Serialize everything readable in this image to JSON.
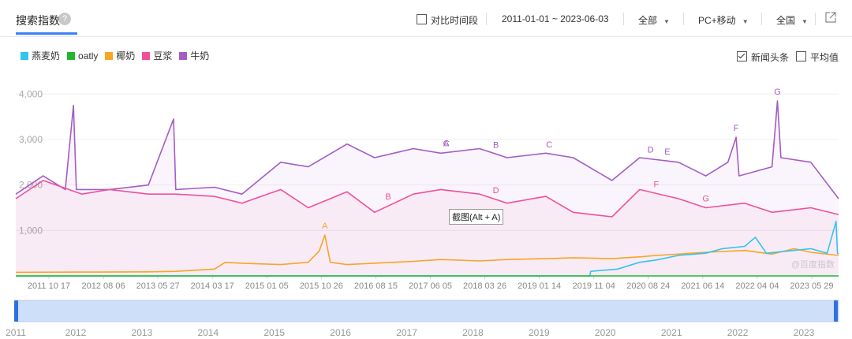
{
  "header": {
    "title": "搜索指数",
    "help_icon": "?",
    "compare_label": "对比时间段",
    "date_range": "2011-01-01 ~ 2023-06-03",
    "scope": "全部",
    "device": "PC+移动",
    "region": "全国",
    "share_icon": "external-link-icon"
  },
  "options": {
    "news_label": "新闻头条",
    "news_checked": true,
    "avg_label": "平均值",
    "avg_checked": false
  },
  "tooltip": "截图(Alt + A)",
  "watermark": "@百度指数",
  "navigator_years": [
    "2011",
    "2012",
    "2013",
    "2014",
    "2015",
    "2016",
    "2017",
    "2018",
    "2019",
    "2020",
    "2021",
    "2022",
    "2023"
  ],
  "chart_data": {
    "type": "line",
    "x_tick_labels": [
      "2011 10 17",
      "2012 08 06",
      "2013 05 27",
      "2014 03 17",
      "2015 01 05",
      "2015 10 26",
      "2016 08 15",
      "2017 06 05",
      "2018 03 26",
      "2019 01 14",
      "2019 11 04",
      "2020 08 24",
      "2021 06 14",
      "2022 04 04",
      "2023 05 29"
    ],
    "y_tick_labels": [
      "1,000",
      "2,000",
      "3,000",
      "4,000"
    ],
    "ylim": [
      0,
      4300
    ],
    "x_range": [
      "2011-01-01",
      "2023-06-03"
    ],
    "legend_position": "top-left",
    "series": [
      {
        "name": "燕麦奶",
        "color": "#33C3F0",
        "points": [
          [
            "2011-01-01",
            0
          ],
          [
            "2019-09-01",
            0
          ],
          [
            "2019-09-05",
            100
          ],
          [
            "2020-02-01",
            150
          ],
          [
            "2020-06-01",
            300
          ],
          [
            "2020-09-01",
            350
          ],
          [
            "2021-01-01",
            450
          ],
          [
            "2021-06-01",
            500
          ],
          [
            "2021-09-01",
            600
          ],
          [
            "2022-01-01",
            650
          ],
          [
            "2022-03-01",
            850
          ],
          [
            "2022-05-01",
            500
          ],
          [
            "2022-09-01",
            550
          ],
          [
            "2023-01-01",
            600
          ],
          [
            "2023-04-01",
            500
          ],
          [
            "2023-05-20",
            1200
          ],
          [
            "2023-05-28",
            500
          ],
          [
            "2023-06-03",
            480
          ]
        ]
      },
      {
        "name": "oatly",
        "color": "#22B530",
        "points": [
          [
            "2011-01-01",
            0
          ],
          [
            "2023-06-03",
            0
          ]
        ]
      },
      {
        "name": "椰奶",
        "color": "#F5A623",
        "points": [
          [
            "2011-01-01",
            80
          ],
          [
            "2012-01-01",
            85
          ],
          [
            "2013-01-01",
            90
          ],
          [
            "2013-06-01",
            100
          ],
          [
            "2014-01-01",
            150
          ],
          [
            "2014-03-01",
            300
          ],
          [
            "2014-06-01",
            280
          ],
          [
            "2015-01-01",
            250
          ],
          [
            "2015-06-01",
            300
          ],
          [
            "2015-08-01",
            550
          ],
          [
            "2015-09-01",
            900
          ],
          [
            "2015-10-01",
            300
          ],
          [
            "2016-01-01",
            250
          ],
          [
            "2017-01-01",
            320
          ],
          [
            "2017-06-01",
            360
          ],
          [
            "2018-01-01",
            330
          ],
          [
            "2018-06-01",
            360
          ],
          [
            "2019-01-01",
            380
          ],
          [
            "2019-06-01",
            400
          ],
          [
            "2020-01-01",
            380
          ],
          [
            "2020-06-01",
            420
          ],
          [
            "2020-09-01",
            450
          ],
          [
            "2021-01-01",
            480
          ],
          [
            "2021-06-01",
            520
          ],
          [
            "2022-01-01",
            560
          ],
          [
            "2022-06-01",
            480
          ],
          [
            "2022-10-01",
            600
          ],
          [
            "2023-01-01",
            520
          ],
          [
            "2023-06-03",
            450
          ]
        ]
      },
      {
        "name": "豆浆",
        "color": "#F0509A",
        "points": [
          [
            "2011-01-01",
            1700
          ],
          [
            "2011-06-01",
            2100
          ],
          [
            "2012-01-01",
            1800
          ],
          [
            "2012-06-01",
            1900
          ],
          [
            "2013-01-01",
            1800
          ],
          [
            "2013-06-01",
            1800
          ],
          [
            "2014-01-01",
            1750
          ],
          [
            "2014-06-01",
            1600
          ],
          [
            "2015-01-01",
            1900
          ],
          [
            "2015-06-01",
            1500
          ],
          [
            "2016-01-01",
            1850
          ],
          [
            "2016-06-01",
            1400
          ],
          [
            "2017-01-01",
            1800
          ],
          [
            "2017-06-01",
            1900
          ],
          [
            "2018-01-01",
            1800
          ],
          [
            "2018-06-01",
            1600
          ],
          [
            "2019-01-01",
            1750
          ],
          [
            "2019-06-01",
            1400
          ],
          [
            "2020-01-01",
            1300
          ],
          [
            "2020-06-01",
            1900
          ],
          [
            "2021-01-01",
            1700
          ],
          [
            "2021-06-01",
            1500
          ],
          [
            "2022-01-01",
            1600
          ],
          [
            "2022-06-01",
            1400
          ],
          [
            "2023-01-01",
            1500
          ],
          [
            "2023-06-03",
            1350
          ]
        ]
      },
      {
        "name": "牛奶",
        "color": "#A45CC4",
        "points": [
          [
            "2011-01-01",
            1800
          ],
          [
            "2011-06-01",
            2200
          ],
          [
            "2011-10-01",
            1900
          ],
          [
            "2011-11-15",
            3750
          ],
          [
            "2011-12-01",
            1900
          ],
          [
            "2012-06-01",
            1900
          ],
          [
            "2013-01-01",
            2000
          ],
          [
            "2013-05-20",
            3450
          ],
          [
            "2013-06-01",
            1900
          ],
          [
            "2014-01-01",
            1950
          ],
          [
            "2014-06-01",
            1800
          ],
          [
            "2015-01-01",
            2500
          ],
          [
            "2015-06-01",
            2400
          ],
          [
            "2016-01-01",
            2900
          ],
          [
            "2016-06-01",
            2600
          ],
          [
            "2017-01-01",
            2800
          ],
          [
            "2017-06-01",
            2700
          ],
          [
            "2018-01-01",
            2800
          ],
          [
            "2018-06-01",
            2600
          ],
          [
            "2019-01-01",
            2700
          ],
          [
            "2019-06-01",
            2600
          ],
          [
            "2020-01-01",
            2100
          ],
          [
            "2020-06-01",
            2600
          ],
          [
            "2021-01-01",
            2500
          ],
          [
            "2021-06-01",
            2200
          ],
          [
            "2021-10-01",
            2500
          ],
          [
            "2021-11-15",
            3050
          ],
          [
            "2021-12-01",
            2200
          ],
          [
            "2022-06-01",
            2400
          ],
          [
            "2022-07-01",
            3850
          ],
          [
            "2022-07-20",
            2600
          ],
          [
            "2023-01-01",
            2500
          ],
          [
            "2023-06-03",
            1700
          ]
        ]
      }
    ],
    "annotations": [
      {
        "label": "A",
        "series": "椰奶",
        "x": "2015-09-01"
      },
      {
        "label": "B",
        "series": "豆浆",
        "x": "2016-08-15"
      },
      {
        "label": "A",
        "series": "牛奶",
        "x": "2017-07-01"
      },
      {
        "label": "C",
        "series": "牛奶",
        "x": "2017-07-01"
      },
      {
        "label": "B",
        "series": "牛奶",
        "x": "2018-04-01"
      },
      {
        "label": "D",
        "series": "豆浆",
        "x": "2018-04-01"
      },
      {
        "label": "C",
        "series": "牛奶",
        "x": "2019-01-20"
      },
      {
        "label": "D",
        "series": "牛奶",
        "x": "2020-08-01"
      },
      {
        "label": "E",
        "series": "牛奶",
        "x": "2020-11-01"
      },
      {
        "label": "F",
        "series": "豆浆",
        "x": "2020-09-01"
      },
      {
        "label": "G",
        "series": "豆浆",
        "x": "2021-06-01"
      },
      {
        "label": "F",
        "series": "牛奶",
        "x": "2021-11-15"
      },
      {
        "label": "G",
        "series": "牛奶",
        "x": "2022-07-01"
      }
    ]
  }
}
